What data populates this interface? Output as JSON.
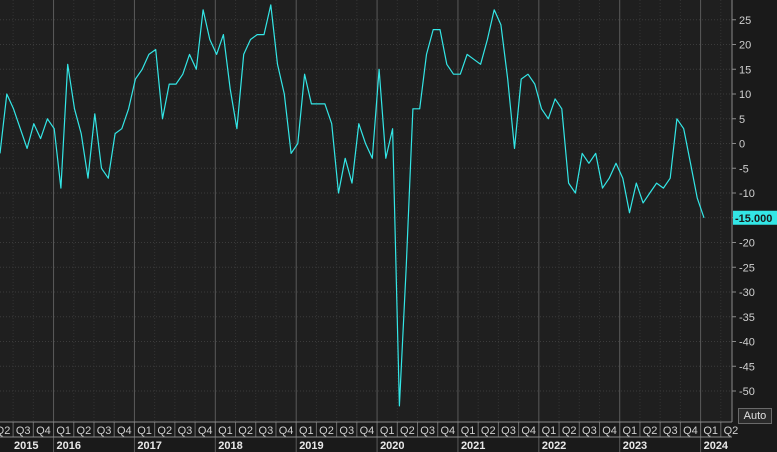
{
  "chart_data": {
    "type": "line",
    "title": "",
    "xlabel": "",
    "ylabel": "",
    "ylim": [
      -55,
      28
    ],
    "yticks": [
      25,
      20,
      15,
      10,
      5,
      0,
      -5,
      -10,
      -15,
      -20,
      -25,
      -30,
      -35,
      -40,
      -45,
      -50
    ],
    "grid": true,
    "line_color": "#33e6e6",
    "last_value_label": "-15.000",
    "quarter_labels": [
      "Q2",
      "Q3",
      "Q4",
      "Q1",
      "Q2",
      "Q3",
      "Q4",
      "Q1",
      "Q2",
      "Q3",
      "Q4",
      "Q1",
      "Q2",
      "Q3",
      "Q4",
      "Q1",
      "Q2",
      "Q3",
      "Q4",
      "Q1",
      "Q2",
      "Q3",
      "Q4",
      "Q1",
      "Q2",
      "Q3",
      "Q4",
      "Q1",
      "Q2",
      "Q3",
      "Q4",
      "Q1",
      "Q2",
      "Q3",
      "Q4",
      "Q1",
      "Q2"
    ],
    "year_labels": [
      "2015",
      "2016",
      "2017",
      "2018",
      "2019",
      "2020",
      "2021",
      "2022",
      "2023",
      "2024"
    ],
    "series": [
      {
        "values": [
          -2,
          10,
          7,
          3,
          -1,
          4,
          1,
          5,
          3,
          -9,
          16,
          7,
          2,
          -7,
          6,
          -5,
          -7,
          2,
          3,
          7,
          13,
          15,
          18,
          19,
          5,
          12,
          12,
          14,
          18,
          15,
          27,
          21,
          18,
          22,
          11,
          3,
          18,
          21,
          22,
          22,
          28,
          16,
          10,
          -2,
          0,
          14,
          8,
          8,
          8,
          4,
          -10,
          -3,
          -8,
          4,
          0,
          -3,
          15,
          -3,
          3,
          -53,
          -25,
          7,
          7,
          18,
          23,
          23,
          16,
          14,
          14,
          18,
          17,
          16,
          21,
          27,
          24,
          13,
          -1,
          13,
          14,
          12,
          7,
          5,
          9,
          7,
          -8,
          -10,
          -2,
          -4,
          -2,
          -9,
          -7,
          -4,
          -7,
          -14,
          -8,
          -12,
          -10,
          -8,
          -9,
          -7,
          5,
          3,
          -4,
          -11,
          -15
        ]
      }
    ]
  },
  "controls": {
    "auto_label": "Auto"
  }
}
